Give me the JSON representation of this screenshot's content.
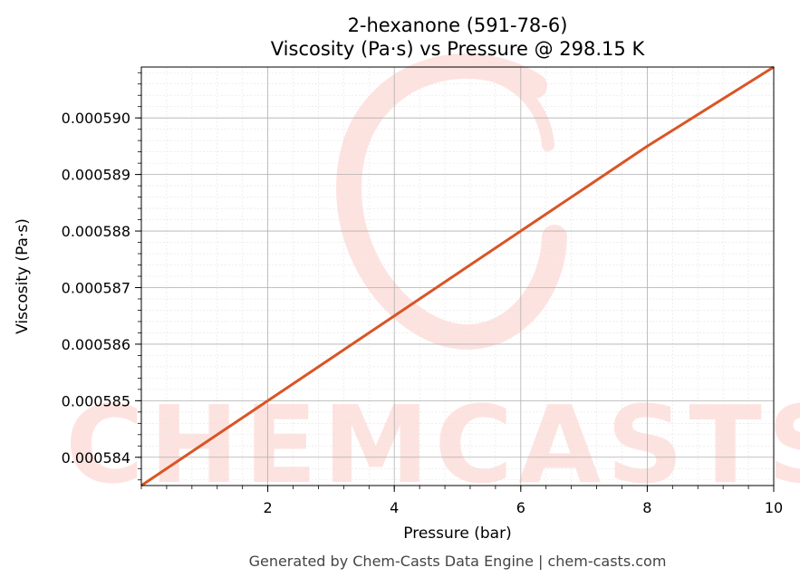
{
  "chart_data": {
    "type": "line",
    "title": "2-hexanone (591-78-6)",
    "subtitle": "Viscosity (Pa·s) vs Pressure @ 298.15 K",
    "xlabel": "Pressure (bar)",
    "ylabel": "Viscosity (Pa·s)",
    "xlim": [
      0.0,
      10.0
    ],
    "ylim": [
      0.0005835,
      0.0005909
    ],
    "x_ticks": [
      2,
      4,
      6,
      8,
      10
    ],
    "x_tick_labels": [
      "2",
      "4",
      "6",
      "8",
      "10"
    ],
    "y_ticks": [
      0.000584,
      0.000585,
      0.000586,
      0.000587,
      0.000588,
      0.000589,
      0.00059
    ],
    "y_tick_labels": [
      "0.000584",
      "0.000585",
      "0.000586",
      "0.000587",
      "0.000588",
      "0.000589",
      "0.000590"
    ],
    "grid": true,
    "series": [
      {
        "color": "#d95525",
        "x": [
          0.0,
          2.0,
          4.0,
          6.0,
          8.0,
          10.0
        ],
        "y": [
          0.0005835,
          0.000585,
          0.0005865,
          0.000588,
          0.0005895,
          0.0005909
        ]
      }
    ]
  },
  "watermark": {
    "text": "CHEMCASTS",
    "color": "#fde3e0"
  },
  "footer": "Generated by Chem-Casts Data Engine | chem-casts.com"
}
